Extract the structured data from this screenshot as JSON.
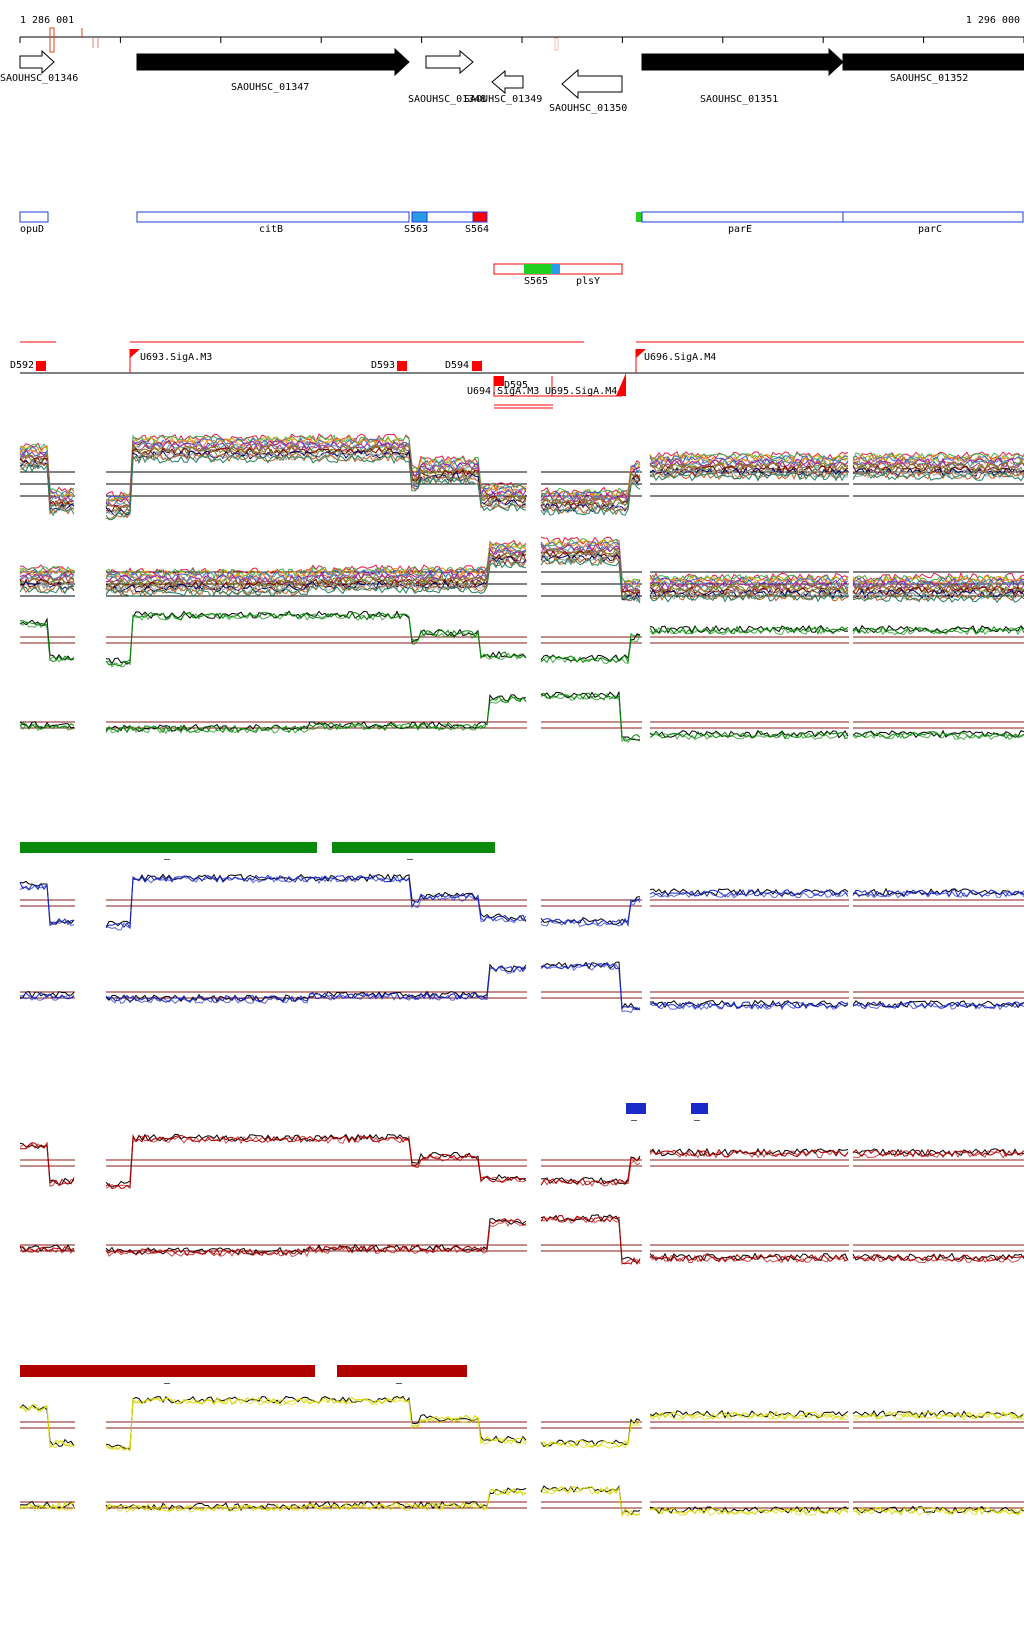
{
  "coords": {
    "start": "1 286 001",
    "end": "1 296 000"
  },
  "colors": {
    "gene": "#000000",
    "region_outline": "#1a3cd8",
    "region_accent": "#2a9be8",
    "promoter": "#ff0000",
    "green": "#0a8a0a",
    "blue": "#1a2ac8",
    "red": "#b00000",
    "yellow": "#d9d900",
    "threshold": "#8b1a1a"
  },
  "genes": [
    {
      "label": "SAOUHSC_01346",
      "strand": "+"
    },
    {
      "label": "SAOUHSC_01347",
      "strand": "+"
    },
    {
      "label": "SAOUHSC_01348",
      "strand": "+"
    },
    {
      "label": "SAOUHSC_01349",
      "strand": "-"
    },
    {
      "label": "SAOUHSC_01350",
      "strand": "-"
    },
    {
      "label": "SAOUHSC_01351",
      "strand": "+"
    },
    {
      "label": "SAOUHSC_01352",
      "strand": "+"
    }
  ],
  "regions_top": [
    {
      "label": "opuD"
    },
    {
      "label": "citB"
    },
    {
      "label": "S563"
    },
    {
      "label": "S564"
    },
    {
      "label": "parE"
    },
    {
      "label": "parC"
    }
  ],
  "regions_bottom": [
    {
      "label": "S565"
    },
    {
      "label": "plsY"
    }
  ],
  "promoters": [
    {
      "label": "D592"
    },
    {
      "label": "U693.SigA.M3"
    },
    {
      "label": "D593"
    },
    {
      "label": "D594"
    },
    {
      "label": "D595"
    },
    {
      "label": "U694.SigA.M3"
    },
    {
      "label": "U695.SigA.M4"
    },
    {
      "label": "U696.SigA.M4"
    }
  ],
  "bar_sections": [
    {
      "name": "green",
      "marker": "–"
    },
    {
      "name": "blue",
      "marker": "–"
    },
    {
      "name": "red",
      "marker": "–"
    }
  ]
}
